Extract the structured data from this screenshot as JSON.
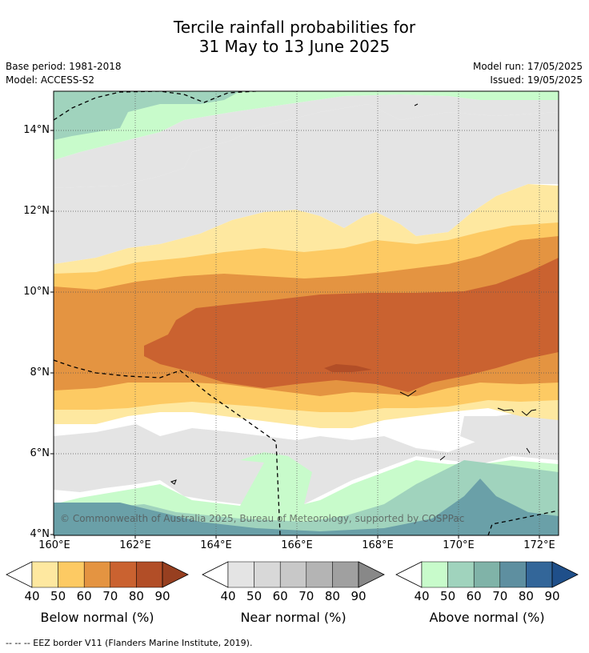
{
  "title_line1": "Tercile rainfall probabilities for",
  "title_line2": "31 May to 13 June 2025",
  "base_period": "Base period: 1981-2018",
  "model": "Model: ACCESS-S2",
  "model_run": "Model run: 17/05/2025",
  "issued": "Issued: 19/05/2025",
  "credit": "© Commonwealth of Australia 2025, Bureau of Meteorology, supported by COSPPac",
  "footer": "-- -- -- EEZ border V11 (Flanders Marine Institute, 2019).",
  "lat_labels": [
    "14°N",
    "12°N",
    "10°N",
    "8°N",
    "6°N",
    "4°N"
  ],
  "lon_labels": [
    "160°E",
    "162°E",
    "164°E",
    "166°E",
    "168°E",
    "170°E",
    "172°E"
  ],
  "colorbars": [
    {
      "label": "Below normal (%)",
      "ticks": [
        "40",
        "50",
        "60",
        "70",
        "80",
        "90"
      ],
      "colors": [
        "#fee8a0",
        "#fdca63",
        "#e49441",
        "#ca6230",
        "#b24e27",
        "#973f20"
      ]
    },
    {
      "label": "Near normal (%)",
      "ticks": [
        "40",
        "50",
        "60",
        "70",
        "80",
        "90"
      ],
      "colors": [
        "#e4e4e4",
        "#d8d8d8",
        "#c8c8c8",
        "#b4b4b4",
        "#a0a0a0",
        "#888888"
      ]
    },
    {
      "label": "Above normal (%)",
      "ticks": [
        "40",
        "50",
        "60",
        "70",
        "80",
        "90"
      ],
      "colors": [
        "#c8fbcb",
        "#a0d3bd",
        "#80b3a8",
        "#5e8fa0",
        "#336699",
        "#1f4f8a"
      ]
    }
  ],
  "colors": {
    "below_40": "#fee8a0",
    "below_50": "#fdca63",
    "below_60": "#e49441",
    "below_70": "#ca6230",
    "below_80": "#b24e27",
    "near_40": "#e4e4e4",
    "above_40": "#c8fbcb",
    "above_50": "#a0d3bd",
    "above_60": "#80b3a8",
    "above_70": "#6aa0a8"
  }
}
